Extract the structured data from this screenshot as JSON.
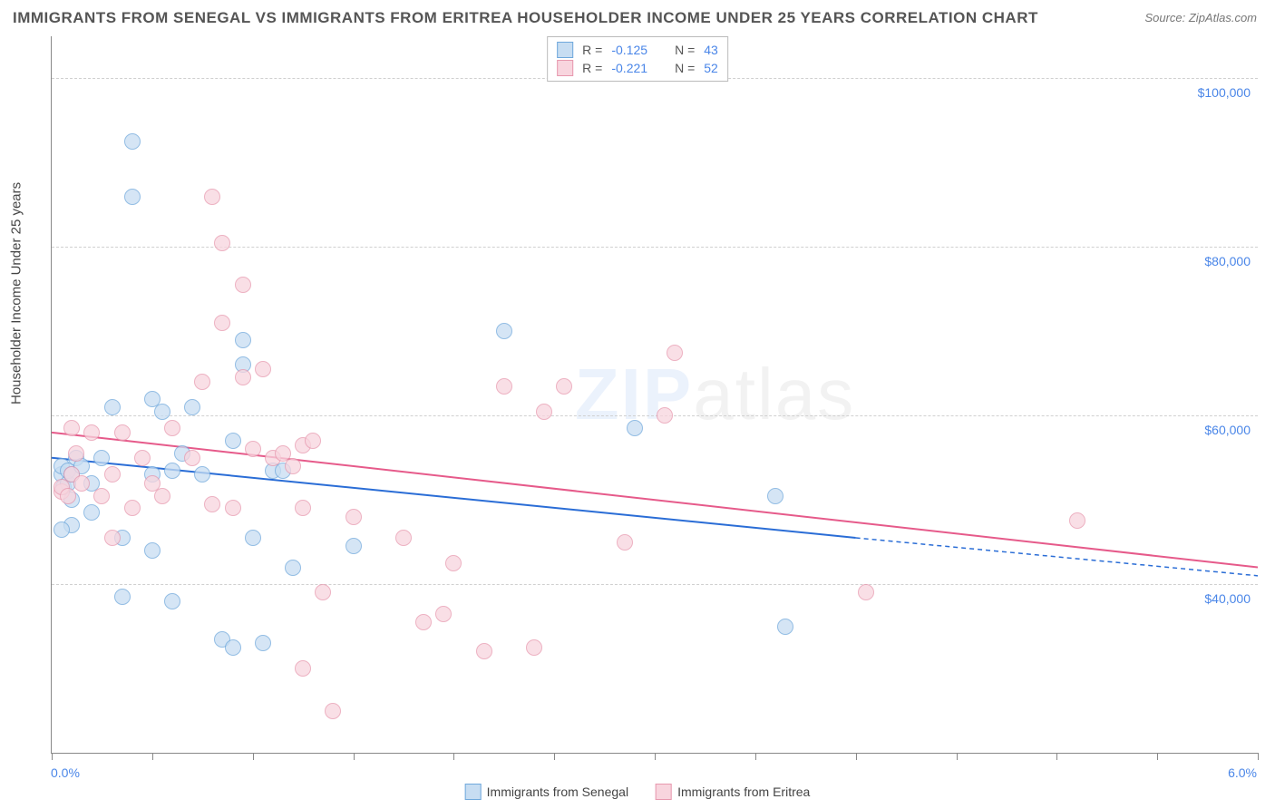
{
  "title": "IMMIGRANTS FROM SENEGAL VS IMMIGRANTS FROM ERITREA HOUSEHOLDER INCOME UNDER 25 YEARS CORRELATION CHART",
  "source": "Source: ZipAtlas.com",
  "watermark_zip": "ZIP",
  "watermark_atlas": "atlas",
  "y_axis_title": "Householder Income Under 25 years",
  "chart": {
    "type": "scatter",
    "x_min": 0.0,
    "x_max": 6.0,
    "y_min": 20000,
    "y_max": 105000,
    "y_ticks": [
      40000,
      60000,
      80000,
      100000
    ],
    "y_tick_labels": [
      "$40,000",
      "$60,000",
      "$80,000",
      "$100,000"
    ],
    "x_tick_positions": [
      0,
      0.5,
      1.0,
      1.5,
      2.0,
      2.5,
      3.0,
      3.5,
      4.0,
      4.5,
      5.0,
      5.5,
      6.0
    ],
    "x_min_label": "0.0%",
    "x_max_label": "6.0%",
    "grid_color": "#d0d0d0",
    "background_color": "#ffffff",
    "axis_color": "#888888"
  },
  "series": [
    {
      "id": "senegal",
      "label": "Immigrants from Senegal",
      "fill": "#c7ddf2",
      "stroke": "#6fa8dc",
      "trend_color": "#2a6dd6",
      "R": "-0.125",
      "N": "43",
      "marker_radius": 8,
      "trend": {
        "x1": 0.0,
        "y1": 55000,
        "x2": 4.0,
        "y2": 45500,
        "x2_ext": 6.0,
        "y2_ext": 41000
      },
      "points": [
        [
          0.05,
          53000
        ],
        [
          0.05,
          54000
        ],
        [
          0.06,
          51500
        ],
        [
          0.08,
          52000
        ],
        [
          0.08,
          53500
        ],
        [
          0.1,
          53000
        ],
        [
          0.1,
          50000
        ],
        [
          0.1,
          47000
        ],
        [
          0.12,
          55000
        ],
        [
          0.15,
          54000
        ],
        [
          0.2,
          52000
        ],
        [
          0.2,
          48500
        ],
        [
          0.25,
          55000
        ],
        [
          0.3,
          61000
        ],
        [
          0.35,
          45500
        ],
        [
          0.35,
          38500
        ],
        [
          0.4,
          92500
        ],
        [
          0.4,
          86000
        ],
        [
          0.5,
          62000
        ],
        [
          0.5,
          53000
        ],
        [
          0.55,
          60500
        ],
        [
          0.6,
          38000
        ],
        [
          0.6,
          53500
        ],
        [
          0.65,
          55500
        ],
        [
          0.7,
          61000
        ],
        [
          0.75,
          53000
        ],
        [
          0.85,
          33500
        ],
        [
          0.9,
          32500
        ],
        [
          0.95,
          69000
        ],
        [
          0.95,
          66000
        ],
        [
          1.0,
          45500
        ],
        [
          1.05,
          33000
        ],
        [
          1.1,
          53500
        ],
        [
          1.15,
          53500
        ],
        [
          1.2,
          42000
        ],
        [
          1.5,
          44500
        ],
        [
          2.25,
          70000
        ],
        [
          2.9,
          58500
        ],
        [
          3.6,
          50500
        ],
        [
          3.65,
          35000
        ],
        [
          0.05,
          46500
        ],
        [
          0.5,
          44000
        ],
        [
          0.9,
          57000
        ]
      ]
    },
    {
      "id": "eritrea",
      "label": "Immigrants from Eritrea",
      "fill": "#f8d5de",
      "stroke": "#e798ae",
      "trend_color": "#e65a8a",
      "R": "-0.221",
      "N": "52",
      "marker_radius": 8,
      "trend": {
        "x1": 0.0,
        "y1": 58000,
        "x2": 6.0,
        "y2": 42000
      },
      "points": [
        [
          0.05,
          51000
        ],
        [
          0.05,
          51500
        ],
        [
          0.08,
          50500
        ],
        [
          0.1,
          53000
        ],
        [
          0.1,
          58500
        ],
        [
          0.12,
          55500
        ],
        [
          0.15,
          52000
        ],
        [
          0.2,
          58000
        ],
        [
          0.25,
          50500
        ],
        [
          0.3,
          53000
        ],
        [
          0.35,
          58000
        ],
        [
          0.4,
          49000
        ],
        [
          0.45,
          55000
        ],
        [
          0.5,
          52000
        ],
        [
          0.55,
          50500
        ],
        [
          0.6,
          58500
        ],
        [
          0.7,
          55000
        ],
        [
          0.75,
          64000
        ],
        [
          0.8,
          86000
        ],
        [
          0.8,
          49500
        ],
        [
          0.85,
          80500
        ],
        [
          0.85,
          71000
        ],
        [
          0.9,
          49000
        ],
        [
          0.95,
          75500
        ],
        [
          0.95,
          64500
        ],
        [
          1.0,
          56000
        ],
        [
          1.05,
          65500
        ],
        [
          1.1,
          55000
        ],
        [
          1.15,
          55500
        ],
        [
          1.2,
          54000
        ],
        [
          1.25,
          49000
        ],
        [
          1.25,
          56500
        ],
        [
          1.25,
          30000
        ],
        [
          1.3,
          57000
        ],
        [
          1.35,
          39000
        ],
        [
          1.4,
          25000
        ],
        [
          1.5,
          48000
        ],
        [
          1.75,
          45500
        ],
        [
          1.85,
          35500
        ],
        [
          1.95,
          36500
        ],
        [
          2.0,
          42500
        ],
        [
          2.15,
          32000
        ],
        [
          2.25,
          63500
        ],
        [
          2.4,
          32500
        ],
        [
          2.45,
          60500
        ],
        [
          2.55,
          63500
        ],
        [
          2.85,
          45000
        ],
        [
          3.05,
          60000
        ],
        [
          3.1,
          67500
        ],
        [
          4.05,
          39000
        ],
        [
          5.1,
          47500
        ],
        [
          0.3,
          45500
        ]
      ]
    }
  ],
  "legend_labels": {
    "R": "R =",
    "N": "N ="
  }
}
